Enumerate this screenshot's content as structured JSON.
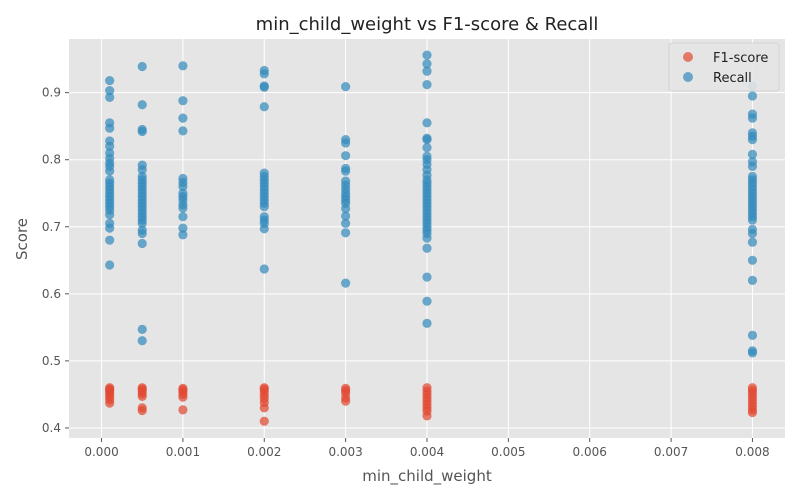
{
  "chart_data": {
    "type": "scatter",
    "title": "min_child_weight vs F1-score & Recall",
    "xlabel": "min_child_weight",
    "ylabel": "Score",
    "xlim": [
      -0.0004,
      0.0084
    ],
    "ylim": [
      0.385,
      0.98
    ],
    "xticks": [
      0.0,
      0.001,
      0.002,
      0.003,
      0.004,
      0.005,
      0.006,
      0.007,
      0.008
    ],
    "xtick_labels": [
      "0.000",
      "0.001",
      "0.002",
      "0.003",
      "0.004",
      "0.005",
      "0.006",
      "0.007",
      "0.008"
    ],
    "yticks": [
      0.4,
      0.5,
      0.6,
      0.7,
      0.8,
      0.9
    ],
    "ytick_labels": [
      "0.4",
      "0.5",
      "0.6",
      "0.7",
      "0.8",
      "0.9"
    ],
    "grid": true,
    "legend_position": "top-right",
    "background": "#e5e5e5",
    "series": [
      {
        "name": "F1-score",
        "color": "#e24a33",
        "points": [
          [
            0.0001,
            0.437
          ],
          [
            0.0001,
            0.442
          ],
          [
            0.0001,
            0.446
          ],
          [
            0.0001,
            0.45
          ],
          [
            0.0001,
            0.453
          ],
          [
            0.0001,
            0.456
          ],
          [
            0.0001,
            0.458
          ],
          [
            0.0001,
            0.46
          ],
          [
            0.0005,
            0.426
          ],
          [
            0.0005,
            0.43
          ],
          [
            0.0005,
            0.447
          ],
          [
            0.0005,
            0.451
          ],
          [
            0.0005,
            0.455
          ],
          [
            0.0005,
            0.458
          ],
          [
            0.0005,
            0.46
          ],
          [
            0.001,
            0.427
          ],
          [
            0.001,
            0.446
          ],
          [
            0.001,
            0.45
          ],
          [
            0.001,
            0.454
          ],
          [
            0.001,
            0.457
          ],
          [
            0.001,
            0.459
          ],
          [
            0.002,
            0.41
          ],
          [
            0.002,
            0.43
          ],
          [
            0.002,
            0.438
          ],
          [
            0.002,
            0.444
          ],
          [
            0.002,
            0.449
          ],
          [
            0.002,
            0.454
          ],
          [
            0.002,
            0.458
          ],
          [
            0.002,
            0.46
          ],
          [
            0.003,
            0.44
          ],
          [
            0.003,
            0.445
          ],
          [
            0.003,
            0.452
          ],
          [
            0.003,
            0.456
          ],
          [
            0.003,
            0.459
          ],
          [
            0.004,
            0.418
          ],
          [
            0.004,
            0.425
          ],
          [
            0.004,
            0.43
          ],
          [
            0.004,
            0.435
          ],
          [
            0.004,
            0.44
          ],
          [
            0.004,
            0.445
          ],
          [
            0.004,
            0.45
          ],
          [
            0.004,
            0.455
          ],
          [
            0.004,
            0.46
          ],
          [
            0.008,
            0.423
          ],
          [
            0.008,
            0.427
          ],
          [
            0.008,
            0.432
          ],
          [
            0.008,
            0.437
          ],
          [
            0.008,
            0.442
          ],
          [
            0.008,
            0.447
          ],
          [
            0.008,
            0.452
          ],
          [
            0.008,
            0.456
          ],
          [
            0.008,
            0.46
          ]
        ]
      },
      {
        "name": "Recall",
        "color": "#348abd",
        "points": [
          [
            0.0001,
            0.918
          ],
          [
            0.0001,
            0.903
          ],
          [
            0.0001,
            0.893
          ],
          [
            0.0001,
            0.855
          ],
          [
            0.0001,
            0.847
          ],
          [
            0.0001,
            0.828
          ],
          [
            0.0001,
            0.82
          ],
          [
            0.0001,
            0.81
          ],
          [
            0.0001,
            0.802
          ],
          [
            0.0001,
            0.795
          ],
          [
            0.0001,
            0.79
          ],
          [
            0.0001,
            0.783
          ],
          [
            0.0001,
            0.77
          ],
          [
            0.0001,
            0.765
          ],
          [
            0.0001,
            0.76
          ],
          [
            0.0001,
            0.755
          ],
          [
            0.0001,
            0.75
          ],
          [
            0.0001,
            0.745
          ],
          [
            0.0001,
            0.74
          ],
          [
            0.0001,
            0.735
          ],
          [
            0.0001,
            0.73
          ],
          [
            0.0001,
            0.725
          ],
          [
            0.0001,
            0.718
          ],
          [
            0.0001,
            0.705
          ],
          [
            0.0001,
            0.698
          ],
          [
            0.0001,
            0.68
          ],
          [
            0.0001,
            0.643
          ],
          [
            0.0005,
            0.939
          ],
          [
            0.0005,
            0.882
          ],
          [
            0.0005,
            0.845
          ],
          [
            0.0005,
            0.842
          ],
          [
            0.0005,
            0.792
          ],
          [
            0.0005,
            0.785
          ],
          [
            0.0005,
            0.775
          ],
          [
            0.0005,
            0.77
          ],
          [
            0.0005,
            0.765
          ],
          [
            0.0005,
            0.76
          ],
          [
            0.0005,
            0.755
          ],
          [
            0.0005,
            0.75
          ],
          [
            0.0005,
            0.745
          ],
          [
            0.0005,
            0.74
          ],
          [
            0.0005,
            0.735
          ],
          [
            0.0005,
            0.73
          ],
          [
            0.0005,
            0.725
          ],
          [
            0.0005,
            0.72
          ],
          [
            0.0005,
            0.715
          ],
          [
            0.0005,
            0.71
          ],
          [
            0.0005,
            0.705
          ],
          [
            0.0005,
            0.695
          ],
          [
            0.0005,
            0.69
          ],
          [
            0.0005,
            0.675
          ],
          [
            0.0005,
            0.547
          ],
          [
            0.0005,
            0.53
          ],
          [
            0.001,
            0.94
          ],
          [
            0.001,
            0.888
          ],
          [
            0.001,
            0.862
          ],
          [
            0.001,
            0.843
          ],
          [
            0.001,
            0.772
          ],
          [
            0.001,
            0.766
          ],
          [
            0.001,
            0.76
          ],
          [
            0.001,
            0.75
          ],
          [
            0.001,
            0.745
          ],
          [
            0.001,
            0.74
          ],
          [
            0.001,
            0.733
          ],
          [
            0.001,
            0.728
          ],
          [
            0.001,
            0.715
          ],
          [
            0.001,
            0.698
          ],
          [
            0.001,
            0.688
          ],
          [
            0.002,
            0.933
          ],
          [
            0.002,
            0.928
          ],
          [
            0.002,
            0.91
          ],
          [
            0.002,
            0.908
          ],
          [
            0.002,
            0.879
          ],
          [
            0.002,
            0.78
          ],
          [
            0.002,
            0.775
          ],
          [
            0.002,
            0.77
          ],
          [
            0.002,
            0.765
          ],
          [
            0.002,
            0.76
          ],
          [
            0.002,
            0.755
          ],
          [
            0.002,
            0.75
          ],
          [
            0.002,
            0.745
          ],
          [
            0.002,
            0.74
          ],
          [
            0.002,
            0.735
          ],
          [
            0.002,
            0.73
          ],
          [
            0.002,
            0.715
          ],
          [
            0.002,
            0.71
          ],
          [
            0.002,
            0.705
          ],
          [
            0.002,
            0.697
          ],
          [
            0.002,
            0.637
          ],
          [
            0.003,
            0.909
          ],
          [
            0.003,
            0.83
          ],
          [
            0.003,
            0.825
          ],
          [
            0.003,
            0.806
          ],
          [
            0.003,
            0.787
          ],
          [
            0.003,
            0.783
          ],
          [
            0.003,
            0.768
          ],
          [
            0.003,
            0.762
          ],
          [
            0.003,
            0.756
          ],
          [
            0.003,
            0.75
          ],
          [
            0.003,
            0.745
          ],
          [
            0.003,
            0.74
          ],
          [
            0.003,
            0.735
          ],
          [
            0.003,
            0.727
          ],
          [
            0.003,
            0.716
          ],
          [
            0.003,
            0.705
          ],
          [
            0.003,
            0.691
          ],
          [
            0.003,
            0.616
          ],
          [
            0.004,
            0.956
          ],
          [
            0.004,
            0.943
          ],
          [
            0.004,
            0.932
          ],
          [
            0.004,
            0.912
          ],
          [
            0.004,
            0.855
          ],
          [
            0.004,
            0.832
          ],
          [
            0.004,
            0.83
          ],
          [
            0.004,
            0.818
          ],
          [
            0.004,
            0.805
          ],
          [
            0.004,
            0.8
          ],
          [
            0.004,
            0.793
          ],
          [
            0.004,
            0.785
          ],
          [
            0.004,
            0.777
          ],
          [
            0.004,
            0.77
          ],
          [
            0.004,
            0.765
          ],
          [
            0.004,
            0.76
          ],
          [
            0.004,
            0.755
          ],
          [
            0.004,
            0.75
          ],
          [
            0.004,
            0.745
          ],
          [
            0.004,
            0.74
          ],
          [
            0.004,
            0.735
          ],
          [
            0.004,
            0.73
          ],
          [
            0.004,
            0.725
          ],
          [
            0.004,
            0.72
          ],
          [
            0.004,
            0.715
          ],
          [
            0.004,
            0.71
          ],
          [
            0.004,
            0.705
          ],
          [
            0.004,
            0.7
          ],
          [
            0.004,
            0.695
          ],
          [
            0.004,
            0.69
          ],
          [
            0.004,
            0.683
          ],
          [
            0.004,
            0.668
          ],
          [
            0.004,
            0.625
          ],
          [
            0.004,
            0.589
          ],
          [
            0.004,
            0.556
          ],
          [
            0.008,
            0.91
          ],
          [
            0.008,
            0.895
          ],
          [
            0.008,
            0.868
          ],
          [
            0.008,
            0.862
          ],
          [
            0.008,
            0.84
          ],
          [
            0.008,
            0.835
          ],
          [
            0.008,
            0.83
          ],
          [
            0.008,
            0.808
          ],
          [
            0.008,
            0.797
          ],
          [
            0.008,
            0.79
          ],
          [
            0.008,
            0.775
          ],
          [
            0.008,
            0.77
          ],
          [
            0.008,
            0.765
          ],
          [
            0.008,
            0.76
          ],
          [
            0.008,
            0.755
          ],
          [
            0.008,
            0.75
          ],
          [
            0.008,
            0.745
          ],
          [
            0.008,
            0.74
          ],
          [
            0.008,
            0.735
          ],
          [
            0.008,
            0.73
          ],
          [
            0.008,
            0.725
          ],
          [
            0.008,
            0.72
          ],
          [
            0.008,
            0.715
          ],
          [
            0.008,
            0.71
          ],
          [
            0.008,
            0.696
          ],
          [
            0.008,
            0.69
          ],
          [
            0.008,
            0.677
          ],
          [
            0.008,
            0.65
          ],
          [
            0.008,
            0.62
          ],
          [
            0.008,
            0.538
          ],
          [
            0.008,
            0.515
          ],
          [
            0.008,
            0.512
          ]
        ]
      }
    ]
  }
}
